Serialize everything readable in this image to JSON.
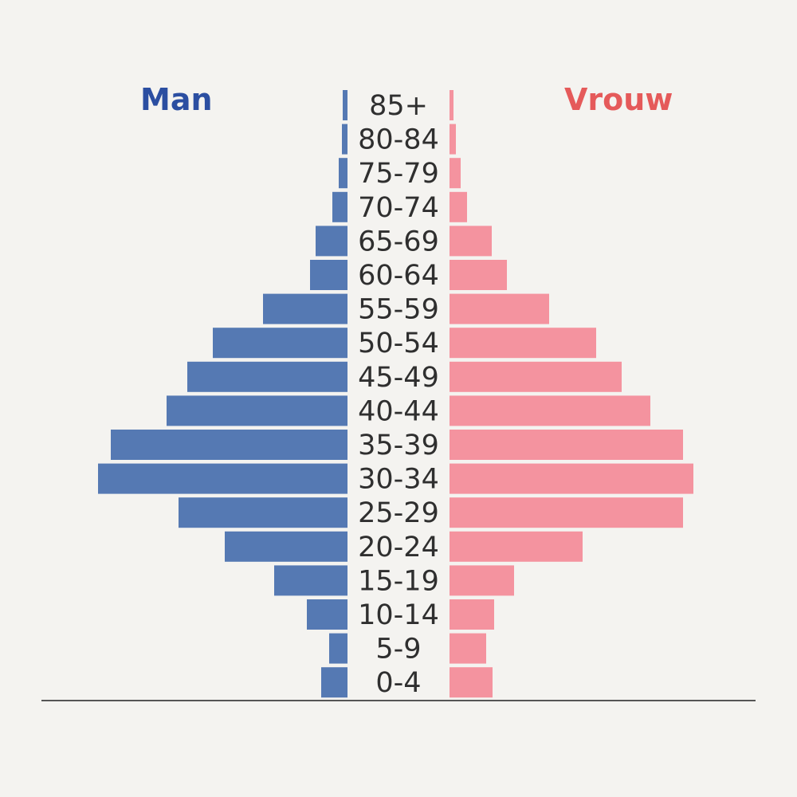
{
  "chart_data": {
    "type": "bar",
    "orientation": "horizontal",
    "layout": "population-pyramid",
    "categories": [
      "85+",
      "80-84",
      "75-79",
      "70-74",
      "65-69",
      "60-64",
      "55-59",
      "50-54",
      "45-49",
      "40-44",
      "35-39",
      "30-34",
      "25-29",
      "20-24",
      "15-19",
      "10-14",
      "5-9",
      "0-4"
    ],
    "series": [
      {
        "name": "Man",
        "color": "#5579b3",
        "values": [
          6,
          7,
          11,
          19,
          40,
          47,
          106,
          169,
          201,
          227,
          297,
          313,
          212,
          154,
          92,
          51,
          23,
          33
        ]
      },
      {
        "name": "Vrouw",
        "color": "#f4939f",
        "values": [
          5,
          8,
          14,
          22,
          53,
          72,
          125,
          184,
          216,
          252,
          293,
          306,
          293,
          167,
          81,
          56,
          46,
          54
        ]
      }
    ],
    "legend_colors": {
      "Man": "#2b4ea1",
      "Vrouw": "#e55a5a"
    },
    "legend_position": "top",
    "grid": false,
    "xlabel": "",
    "ylabel": ""
  }
}
